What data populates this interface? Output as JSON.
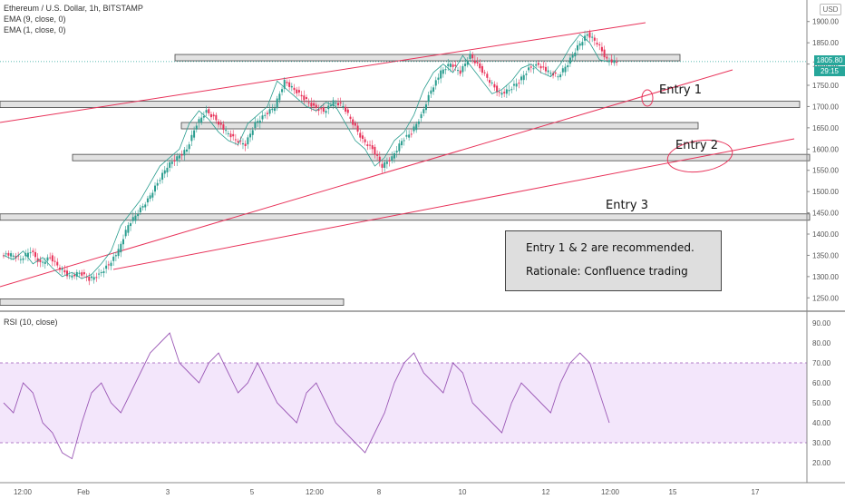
{
  "header": {
    "title": "Ethereum / U.S. Dollar, 1h, BITSTAMP",
    "ema1": "EMA (9, close, 0)",
    "ema2": "EMA (1, close, 0)",
    "currency": "USD"
  },
  "price_panel": {
    "last_price": "1805.80",
    "countdown": "29:15",
    "y_ticks": [
      "1900.00",
      "1850.00",
      "1800.00",
      "1750.00",
      "1700.00",
      "1650.00",
      "1600.00",
      "1550.00",
      "1500.00",
      "1450.00",
      "1400.00",
      "1350.00",
      "1300.00",
      "1250.00"
    ]
  },
  "rsi_panel": {
    "label": "RSI (10, close)",
    "y_ticks": [
      "90.00",
      "80.00",
      "70.00",
      "60.00",
      "50.00",
      "40.00",
      "30.00",
      "20.00"
    ]
  },
  "x_axis": {
    "ticks": [
      "12:00",
      "Feb",
      "3",
      "5",
      "12:00",
      "8",
      "10",
      "12",
      "12:00",
      "15",
      "17"
    ]
  },
  "annotations": {
    "entry1": "Entry 1",
    "entry2": "Entry 2",
    "entry3": "Entry 3",
    "note_line1": "Entry 1 & 2 are recommended.",
    "note_line2": "Rationale: Confluence trading"
  },
  "colors": {
    "up_candle": "#2a9d8f",
    "down_candle": "#e8335a",
    "trendline": "#e8335a",
    "rsi_line": "#9b59b6",
    "rsi_band": "#f3e6fb",
    "price_badge": "#26a69a"
  },
  "chart_data": {
    "type": "candlestick",
    "symbol": "ETH/USD",
    "timeframe": "1h",
    "ylim": [
      1225,
      1925
    ],
    "close_path": [
      1350,
      1340,
      1360,
      1330,
      1345,
      1320,
      1300,
      1310,
      1295,
      1305,
      1330,
      1360,
      1420,
      1450,
      1480,
      1520,
      1560,
      1580,
      1600,
      1660,
      1690,
      1670,
      1640,
      1620,
      1610,
      1660,
      1680,
      1700,
      1760,
      1740,
      1720,
      1700,
      1690,
      1710,
      1700,
      1660,
      1620,
      1600,
      1560,
      1580,
      1620,
      1640,
      1680,
      1740,
      1780,
      1800,
      1780,
      1820,
      1790,
      1760,
      1730,
      1740,
      1760,
      1790,
      1800,
      1780,
      1770,
      1800,
      1840,
      1870,
      1850,
      1810,
      1805
    ],
    "horizontal_zones": [
      {
        "price": 1815,
        "label": ""
      },
      {
        "price": 1705,
        "label": "Entry 1"
      },
      {
        "price": 1655,
        "label": ""
      },
      {
        "price": 1580,
        "label": "Entry 2"
      },
      {
        "price": 1440,
        "label": "Entry 3"
      },
      {
        "price": 1240,
        "label": ""
      }
    ],
    "rsi": {
      "ylim": [
        10,
        95
      ],
      "overbought": 70,
      "oversold": 30,
      "values": [
        50,
        45,
        60,
        55,
        40,
        35,
        25,
        22,
        40,
        55,
        60,
        50,
        45,
        55,
        65,
        75,
        80,
        85,
        70,
        65,
        60,
        70,
        75,
        65,
        55,
        60,
        70,
        60,
        50,
        45,
        40,
        55,
        60,
        50,
        40,
        35,
        30,
        25,
        35,
        45,
        60,
        70,
        75,
        65,
        60,
        55,
        70,
        65,
        50,
        45,
        40,
        35,
        50,
        60,
        55,
        50,
        45,
        60,
        70,
        75,
        70,
        55,
        40
      ]
    }
  }
}
